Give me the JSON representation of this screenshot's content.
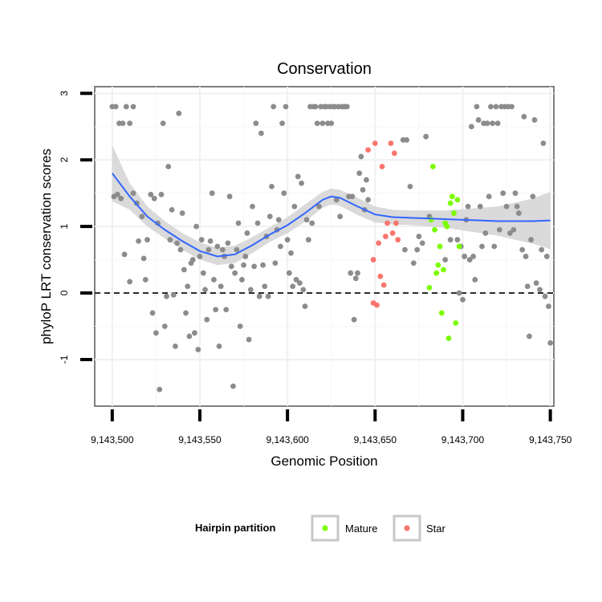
{
  "chart_data": {
    "type": "scatter",
    "title": "Conservation",
    "xlabel": "Genomic Position",
    "ylabel": "phyloP LRT conservation scores",
    "xlim": [
      9143490,
      9143752
    ],
    "ylim": [
      -1.7,
      3.1
    ],
    "x_ticks": [
      9143500,
      9143550,
      9143600,
      9143650,
      9143700,
      9143750
    ],
    "x_tick_labels": [
      "9,143,500",
      "9,143,550",
      "9,143,600",
      "9,143,650",
      "9,143,700",
      "9,143,750"
    ],
    "y_ticks": [
      -1,
      0,
      1,
      2,
      3
    ],
    "y_tick_labels": [
      "-1",
      "0",
      "1",
      "2",
      "3"
    ],
    "reference_line": {
      "y": 0,
      "style": "dashed"
    },
    "grid": true,
    "legend": {
      "title": "Hairpin partition",
      "placement": "bottom",
      "entries": [
        {
          "label": "Mature",
          "color": "#7CFC00"
        },
        {
          "label": "Star",
          "color": "#F8766D"
        }
      ]
    },
    "colors": {
      "background_points": "#8C8C8C",
      "mature": "#7CFC00",
      "star": "#F8766D",
      "smooth_line": "#3366FF",
      "ribbon": "#D3D3D3"
    },
    "series": [
      {
        "group": "background",
        "points": [
          [
            9143500,
            2.8
          ],
          [
            9143502,
            2.8
          ],
          [
            9143504,
            2.55
          ],
          [
            9143506,
            2.55
          ],
          [
            9143508,
            2.8
          ],
          [
            9143510,
            2.55
          ],
          [
            9143512,
            2.8
          ],
          [
            9143501,
            1.45
          ],
          [
            9143503,
            1.48
          ],
          [
            9143505,
            1.42
          ],
          [
            9143507,
            0.58
          ],
          [
            9143510,
            0.17
          ],
          [
            9143512,
            1.5
          ],
          [
            9143514,
            1.35
          ],
          [
            9143515,
            0.78
          ],
          [
            9143517,
            1.15
          ],
          [
            9143518,
            0.52
          ],
          [
            9143519,
            0.2
          ],
          [
            9143520,
            0.8
          ],
          [
            9143522,
            1.48
          ],
          [
            9143523,
            -0.3
          ],
          [
            9143524,
            1.42
          ],
          [
            9143525,
            -0.6
          ],
          [
            9143526,
            1.05
          ],
          [
            9143527,
            -1.45
          ],
          [
            9143528,
            1.48
          ],
          [
            9143529,
            2.55
          ],
          [
            9143530,
            -0.5
          ],
          [
            9143531,
            -0.05
          ],
          [
            9143532,
            1.9
          ],
          [
            9143533,
            0.8
          ],
          [
            9143534,
            1.25
          ],
          [
            9143535,
            -0.03
          ],
          [
            9143536,
            -0.8
          ],
          [
            9143537,
            0.75
          ],
          [
            9143538,
            2.7
          ],
          [
            9143539,
            0.65
          ],
          [
            9143540,
            1.2
          ],
          [
            9143541,
            0.35
          ],
          [
            9143542,
            -0.3
          ],
          [
            9143543,
            0.1
          ],
          [
            9143544,
            -0.65
          ],
          [
            9143545,
            0.45
          ],
          [
            9143546,
            0.5
          ],
          [
            9143547,
            -0.6
          ],
          [
            9143548,
            1.0
          ],
          [
            9143549,
            -0.85
          ],
          [
            9143550,
            0.55
          ],
          [
            9143551,
            0.8
          ],
          [
            9143552,
            0.3
          ],
          [
            9143553,
            0.05
          ],
          [
            9143554,
            -0.4
          ],
          [
            9143555,
            0.65
          ],
          [
            9143556,
            0.78
          ],
          [
            9143557,
            1.5
          ],
          [
            9143558,
            0.2
          ],
          [
            9143559,
            -0.25
          ],
          [
            9143560,
            0.7
          ],
          [
            9143561,
            -0.8
          ],
          [
            9143562,
            0.1
          ],
          [
            9143563,
            0.65
          ],
          [
            9143564,
            0.55
          ],
          [
            9143565,
            -0.25
          ],
          [
            9143566,
            0.75
          ],
          [
            9143567,
            1.45
          ],
          [
            9143568,
            0.4
          ],
          [
            9143569,
            -1.4
          ],
          [
            9143570,
            0.3
          ],
          [
            9143571,
            0.65
          ],
          [
            9143572,
            1.05
          ],
          [
            9143573,
            -0.5
          ],
          [
            9143574,
            0.2
          ],
          [
            9143575,
            0.42
          ],
          [
            9143576,
            0.55
          ],
          [
            9143577,
            0.9
          ],
          [
            9143578,
            -0.7
          ],
          [
            9143579,
            0.05
          ],
          [
            9143580,
            1.3
          ],
          [
            9143581,
            0.4
          ],
          [
            9143582,
            2.55
          ],
          [
            9143583,
            1.05
          ],
          [
            9143584,
            -0.05
          ],
          [
            9143585,
            2.4
          ],
          [
            9143586,
            0.42
          ],
          [
            9143587,
            0.1
          ],
          [
            9143588,
            0.85
          ],
          [
            9143589,
            -0.05
          ],
          [
            9143590,
            1.15
          ],
          [
            9143591,
            1.6
          ],
          [
            9143592,
            2.8
          ],
          [
            9143593,
            0.45
          ],
          [
            9143594,
            0.95
          ],
          [
            9143595,
            1.1
          ],
          [
            9143596,
            0.7
          ],
          [
            9143597,
            2.55
          ],
          [
            9143598,
            1.5
          ],
          [
            9143599,
            2.8
          ],
          [
            9143600,
            0.8
          ],
          [
            9143601,
            0.3
          ],
          [
            9143602,
            0.6
          ],
          [
            9143603,
            0.1
          ],
          [
            9143604,
            1.3
          ],
          [
            9143605,
            0.2
          ],
          [
            9143606,
            1.75
          ],
          [
            9143607,
            0.15
          ],
          [
            9143608,
            1.65
          ],
          [
            9143609,
            0.05
          ],
          [
            9143610,
            -0.2
          ],
          [
            9143611,
            1.1
          ],
          [
            9143612,
            0.8
          ],
          [
            9143613,
            2.8
          ],
          [
            9143614,
            1.05
          ],
          [
            9143615,
            2.8
          ],
          [
            9143616,
            2.8
          ],
          [
            9143617,
            2.55
          ],
          [
            9143618,
            1.3
          ],
          [
            9143619,
            2.8
          ],
          [
            9143620,
            2.55
          ],
          [
            9143621,
            2.8
          ],
          [
            9143622,
            2.8
          ],
          [
            9143623,
            2.55
          ],
          [
            9143624,
            2.8
          ],
          [
            9143625,
            2.55
          ],
          [
            9143626,
            2.8
          ],
          [
            9143627,
            2.8
          ],
          [
            9143628,
            1.4
          ],
          [
            9143629,
            2.8
          ],
          [
            9143630,
            1.15
          ],
          [
            9143631,
            2.8
          ],
          [
            9143632,
            2.8
          ],
          [
            9143633,
            2.8
          ],
          [
            9143634,
            2.8
          ],
          [
            9143635,
            1.45
          ],
          [
            9143636,
            0.3
          ],
          [
            9143637,
            1.45
          ],
          [
            9143638,
            -0.4
          ],
          [
            9143639,
            0.22
          ],
          [
            9143640,
            0.3
          ],
          [
            9143641,
            1.8
          ],
          [
            9143642,
            2.05
          ],
          [
            9143643,
            1.55
          ],
          [
            9143644,
            1.25
          ],
          [
            9143645,
            1.7
          ],
          [
            9143646,
            1.4
          ],
          [
            9143666,
            2.3
          ],
          [
            9143667,
            0.65
          ],
          [
            9143668,
            2.3
          ],
          [
            9143670,
            1.6
          ],
          [
            9143672,
            0.45
          ],
          [
            9143674,
            0.65
          ],
          [
            9143675,
            0.85
          ],
          [
            9143677,
            0.75
          ],
          [
            9143679,
            2.35
          ],
          [
            9143681,
            1.15
          ],
          [
            9143690,
            0.5
          ],
          [
            9143693,
            0.8
          ],
          [
            9143695,
            1.2
          ],
          [
            9143697,
            0.8
          ],
          [
            9143698,
            0.0
          ],
          [
            9143699,
            0.7
          ],
          [
            9143700,
            -0.1
          ],
          [
            9143701,
            0.55
          ],
          [
            9143702,
            1.1
          ],
          [
            9143703,
            1.3
          ],
          [
            9143704,
            0.5
          ],
          [
            9143705,
            2.5
          ],
          [
            9143706,
            0.55
          ],
          [
            9143707,
            0.2
          ],
          [
            9143708,
            2.8
          ],
          [
            9143709,
            2.6
          ],
          [
            9143710,
            1.3
          ],
          [
            9143711,
            0.7
          ],
          [
            9143712,
            2.55
          ],
          [
            9143713,
            0.9
          ],
          [
            9143714,
            2.55
          ],
          [
            9143715,
            1.45
          ],
          [
            9143716,
            2.8
          ],
          [
            9143717,
            2.55
          ],
          [
            9143718,
            0.7
          ],
          [
            9143719,
            2.8
          ],
          [
            9143720,
            2.55
          ],
          [
            9143721,
            0.95
          ],
          [
            9143722,
            2.8
          ],
          [
            9143723,
            1.5
          ],
          [
            9143724,
            2.8
          ],
          [
            9143725,
            1.3
          ],
          [
            9143726,
            2.8
          ],
          [
            9143727,
            0.9
          ],
          [
            9143728,
            2.8
          ],
          [
            9143729,
            0.95
          ],
          [
            9143730,
            1.5
          ],
          [
            9143731,
            1.3
          ],
          [
            9143732,
            1.2
          ],
          [
            9143734,
            0.65
          ],
          [
            9143735,
            2.65
          ],
          [
            9143736,
            0.55
          ],
          [
            9143737,
            0.1
          ],
          [
            9143738,
            -0.65
          ],
          [
            9143739,
            0.8
          ],
          [
            9143740,
            1.45
          ],
          [
            9143741,
            2.6
          ],
          [
            9143742,
            0.15
          ],
          [
            9143744,
            0.05
          ],
          [
            9143745,
            0.65
          ],
          [
            9143746,
            2.25
          ],
          [
            9143747,
            -0.05
          ],
          [
            9143748,
            0.55
          ],
          [
            9143749,
            -0.2
          ],
          [
            9143750,
            -0.75
          ]
        ]
      },
      {
        "name": "Star",
        "points": [
          [
            9143646,
            2.15
          ],
          [
            9143649,
            0.5
          ],
          [
            9143649,
            -0.15
          ],
          [
            9143650,
            2.25
          ],
          [
            9143651,
            -0.18
          ],
          [
            9143652,
            0.75
          ],
          [
            9143653,
            0.25
          ],
          [
            9143654,
            1.9
          ],
          [
            9143655,
            0.12
          ],
          [
            9143656,
            0.85
          ],
          [
            9143657,
            1.05
          ],
          [
            9143659,
            2.25
          ],
          [
            9143660,
            0.9
          ],
          [
            9143661,
            2.1
          ],
          [
            9143662,
            1.05
          ],
          [
            9143663,
            0.8
          ]
        ]
      },
      {
        "name": "Mature",
        "points": [
          [
            9143681,
            0.08
          ],
          [
            9143682,
            1.1
          ],
          [
            9143683,
            1.9
          ],
          [
            9143684,
            0.95
          ],
          [
            9143685,
            0.3
          ],
          [
            9143686,
            0.42
          ],
          [
            9143687,
            0.7
          ],
          [
            9143688,
            -0.3
          ],
          [
            9143689,
            0.35
          ],
          [
            9143690,
            1.05
          ],
          [
            9143691,
            1.0
          ],
          [
            9143692,
            -0.68
          ],
          [
            9143693,
            1.35
          ],
          [
            9143694,
            1.45
          ],
          [
            9143695,
            1.2
          ],
          [
            9143696,
            -0.45
          ],
          [
            9143697,
            1.4
          ],
          [
            9143698,
            0.7
          ]
        ]
      }
    ],
    "smooth": {
      "x": [
        9143500,
        9143510,
        9143520,
        9143530,
        9143540,
        9143550,
        9143560,
        9143570,
        9143580,
        9143590,
        9143600,
        9143610,
        9143620,
        9143625,
        9143630,
        9143640,
        9143650,
        9143660,
        9143670,
        9143680,
        9143690,
        9143700,
        9143710,
        9143720,
        9143730,
        9143740,
        9143750
      ],
      "y": [
        1.8,
        1.45,
        1.15,
        0.95,
        0.78,
        0.63,
        0.55,
        0.58,
        0.72,
        0.88,
        1.02,
        1.2,
        1.4,
        1.45,
        1.43,
        1.3,
        1.18,
        1.14,
        1.13,
        1.12,
        1.11,
        1.1,
        1.09,
        1.08,
        1.08,
        1.08,
        1.09
      ],
      "lower": [
        1.38,
        1.25,
        1.0,
        0.82,
        0.65,
        0.5,
        0.42,
        0.45,
        0.6,
        0.77,
        0.9,
        1.07,
        1.28,
        1.33,
        1.31,
        1.17,
        1.06,
        1.03,
        1.02,
        1.0,
        0.98,
        0.94,
        0.9,
        0.86,
        0.8,
        0.74,
        0.66
      ],
      "upper": [
        2.22,
        1.65,
        1.3,
        1.08,
        0.9,
        0.76,
        0.68,
        0.71,
        0.84,
        0.99,
        1.14,
        1.33,
        1.52,
        1.57,
        1.55,
        1.43,
        1.3,
        1.25,
        1.24,
        1.24,
        1.24,
        1.26,
        1.28,
        1.3,
        1.36,
        1.42,
        1.52
      ]
    }
  }
}
